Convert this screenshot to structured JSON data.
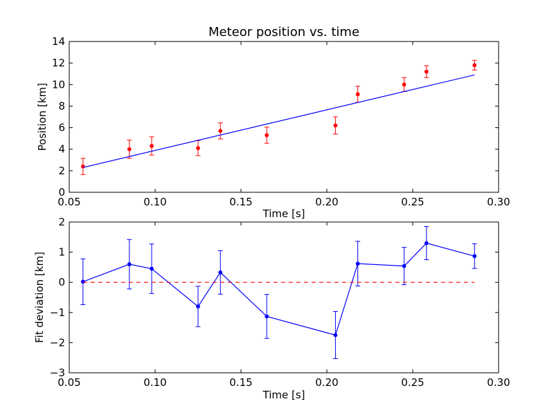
{
  "chart_data": [
    {
      "type": "scatter",
      "title": "Meteor position vs. time",
      "xlabel": "Time [s]",
      "ylabel": "Position [km]",
      "xlim": [
        0.05,
        0.3
      ],
      "ylim": [
        0,
        14
      ],
      "xticks": [
        "0.05",
        "0.10",
        "0.15",
        "0.20",
        "0.25",
        "0.30"
      ],
      "yticks": [
        "0",
        "2",
        "4",
        "6",
        "8",
        "10",
        "12",
        "14"
      ],
      "xtick_values": [
        0.05,
        0.1,
        0.15,
        0.2,
        0.25,
        0.3
      ],
      "ytick_values": [
        0,
        2,
        4,
        6,
        8,
        10,
        12,
        14
      ],
      "grid": false,
      "series": [
        {
          "kind": "errorbar-points",
          "color": "#ff0000",
          "x": [
            0.058,
            0.085,
            0.098,
            0.125,
            0.138,
            0.165,
            0.205,
            0.218,
            0.245,
            0.258,
            0.286
          ],
          "y": [
            2.4,
            4.0,
            4.3,
            4.1,
            5.7,
            5.3,
            6.2,
            9.1,
            10.0,
            11.2,
            11.8
          ],
          "err": [
            0.75,
            0.85,
            0.85,
            0.7,
            0.75,
            0.75,
            0.8,
            0.75,
            0.65,
            0.55,
            0.45
          ]
        },
        {
          "kind": "fit-line",
          "color": "#0000ff",
          "x": [
            0.058,
            0.286
          ],
          "y": [
            2.3,
            10.9
          ]
        }
      ]
    },
    {
      "type": "line",
      "title": "",
      "xlabel": "Time [s]",
      "ylabel": "Fit deviation [km]",
      "xlim": [
        0.05,
        0.3
      ],
      "ylim": [
        -3,
        2
      ],
      "xticks": [
        "0.05",
        "0.10",
        "0.15",
        "0.20",
        "0.25",
        "0.30"
      ],
      "yticks": [
        "−3",
        "−2",
        "−1",
        "0",
        "1",
        "2"
      ],
      "xtick_values": [
        0.05,
        0.1,
        0.15,
        0.2,
        0.25,
        0.3
      ],
      "ytick_values": [
        -3,
        -2,
        -1,
        0,
        1,
        2
      ],
      "grid": false,
      "series": [
        {
          "kind": "errorbar-line",
          "color": "#0000ff",
          "x": [
            0.058,
            0.085,
            0.098,
            0.125,
            0.138,
            0.165,
            0.205,
            0.218,
            0.245,
            0.258,
            0.286
          ],
          "y": [
            0.02,
            0.6,
            0.45,
            -0.8,
            0.33,
            -1.13,
            -1.75,
            0.62,
            0.54,
            1.3,
            0.87
          ],
          "err": [
            0.76,
            0.82,
            0.82,
            0.67,
            0.72,
            0.73,
            0.78,
            0.74,
            0.62,
            0.55,
            0.41
          ]
        },
        {
          "kind": "zero-line",
          "color": "#ff0000",
          "dashed": true,
          "x": [
            0.058,
            0.286
          ],
          "y": [
            0,
            0
          ]
        }
      ]
    }
  ]
}
